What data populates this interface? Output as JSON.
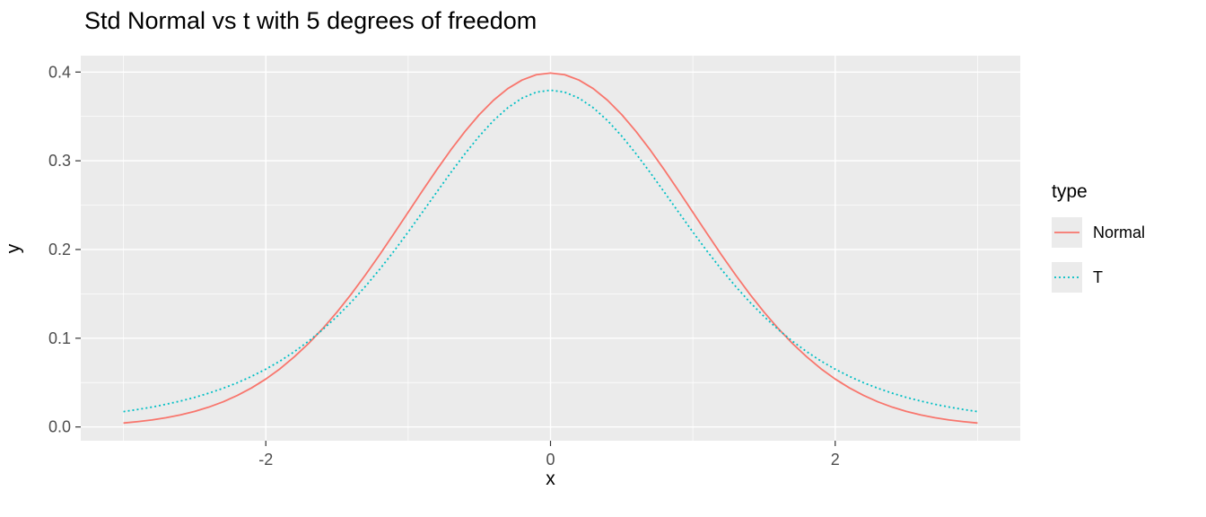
{
  "title": "Std Normal vs t with 5 degrees of freedom",
  "axes": {
    "x": {
      "label": "x",
      "domain": [
        -3.3,
        3.3
      ],
      "tick_values": [
        -2,
        0,
        2
      ],
      "tick_labels": [
        "-2",
        "0",
        "2"
      ],
      "minor_values": [
        -3,
        -1,
        1,
        3
      ]
    },
    "y": {
      "label": "y",
      "domain": [
        -0.0155,
        0.4185
      ],
      "tick_values": [
        0.0,
        0.1,
        0.2,
        0.3,
        0.4
      ],
      "tick_labels": [
        "0.0",
        "0.1",
        "0.2",
        "0.3",
        "0.4"
      ],
      "minor_values": [
        0.05,
        0.15,
        0.25,
        0.35
      ]
    }
  },
  "legend": {
    "title": "type",
    "entries": [
      {
        "label": "Normal",
        "color": "#F8766D",
        "dash": "solid"
      },
      {
        "label": "T",
        "color": "#00BFC4",
        "dash": "dotted"
      }
    ]
  },
  "colors": {
    "panel_background": "#EBEBEB",
    "gridline": "#FFFFFF",
    "tick_mark": "#333333",
    "tick_label": "#4D4D4D",
    "normal_line": "#F8766D",
    "t_line": "#00BFC4"
  },
  "chart_data": {
    "type": "line",
    "title": "Std Normal vs t with 5 degrees of freedom",
    "xlabel": "x",
    "ylabel": "y",
    "xlim": [
      -3.3,
      3.3
    ],
    "ylim": [
      -0.0155,
      0.4185
    ],
    "legend_position": "right",
    "grid": true,
    "x": [
      -3,
      -2.9,
      -2.8,
      -2.7,
      -2.6,
      -2.5,
      -2.4,
      -2.3,
      -2.2,
      -2.1,
      -2,
      -1.9,
      -1.8,
      -1.7,
      -1.6,
      -1.5,
      -1.4,
      -1.3,
      -1.2,
      -1.1,
      -1,
      -0.9,
      -0.8,
      -0.7,
      -0.6,
      -0.5,
      -0.4,
      -0.3,
      -0.2,
      -0.1,
      0,
      0.1,
      0.2,
      0.3,
      0.4,
      0.5,
      0.6,
      0.7,
      0.8,
      0.9,
      1,
      1.1,
      1.2,
      1.3,
      1.4,
      1.5,
      1.6,
      1.7,
      1.8,
      1.9,
      2,
      2.1,
      2.2,
      2.3,
      2.4,
      2.5,
      2.6,
      2.7,
      2.8,
      2.9,
      3
    ],
    "series": [
      {
        "name": "Normal",
        "color": "#F8766D",
        "dash": "solid",
        "values": [
          0.0044,
          0.006,
          0.0079,
          0.0104,
          0.0136,
          0.0175,
          0.0224,
          0.0283,
          0.0355,
          0.044,
          0.054,
          0.0656,
          0.079,
          0.094,
          0.1109,
          0.1295,
          0.1497,
          0.1714,
          0.1942,
          0.2179,
          0.242,
          0.2661,
          0.2897,
          0.3123,
          0.3332,
          0.3521,
          0.3683,
          0.3814,
          0.391,
          0.397,
          0.3989,
          0.397,
          0.391,
          0.3814,
          0.3683,
          0.3521,
          0.3332,
          0.3123,
          0.2897,
          0.2661,
          0.242,
          0.2179,
          0.1942,
          0.1714,
          0.1497,
          0.1295,
          0.1109,
          0.094,
          0.079,
          0.0656,
          0.054,
          0.044,
          0.0355,
          0.0283,
          0.0224,
          0.0175,
          0.0136,
          0.0104,
          0.0079,
          0.006,
          0.0044
        ]
      },
      {
        "name": "T",
        "color": "#00BFC4",
        "dash": "dotted",
        "values": [
          0.0173,
          0.0197,
          0.0224,
          0.0256,
          0.0292,
          0.0333,
          0.0381,
          0.0436,
          0.0498,
          0.057,
          0.0651,
          0.0743,
          0.0848,
          0.0966,
          0.1098,
          0.1245,
          0.1407,
          0.1585,
          0.1777,
          0.1981,
          0.2197,
          0.242,
          0.2645,
          0.2868,
          0.3081,
          0.3279,
          0.3454,
          0.3598,
          0.3706,
          0.3773,
          0.3796,
          0.3773,
          0.3706,
          0.3598,
          0.3454,
          0.3279,
          0.3081,
          0.2868,
          0.2645,
          0.242,
          0.2197,
          0.1981,
          0.1777,
          0.1585,
          0.1407,
          0.1245,
          0.1098,
          0.0966,
          0.0848,
          0.0743,
          0.0651,
          0.057,
          0.0498,
          0.0436,
          0.0381,
          0.0333,
          0.0292,
          0.0256,
          0.0224,
          0.0197,
          0.0173
        ]
      }
    ]
  }
}
